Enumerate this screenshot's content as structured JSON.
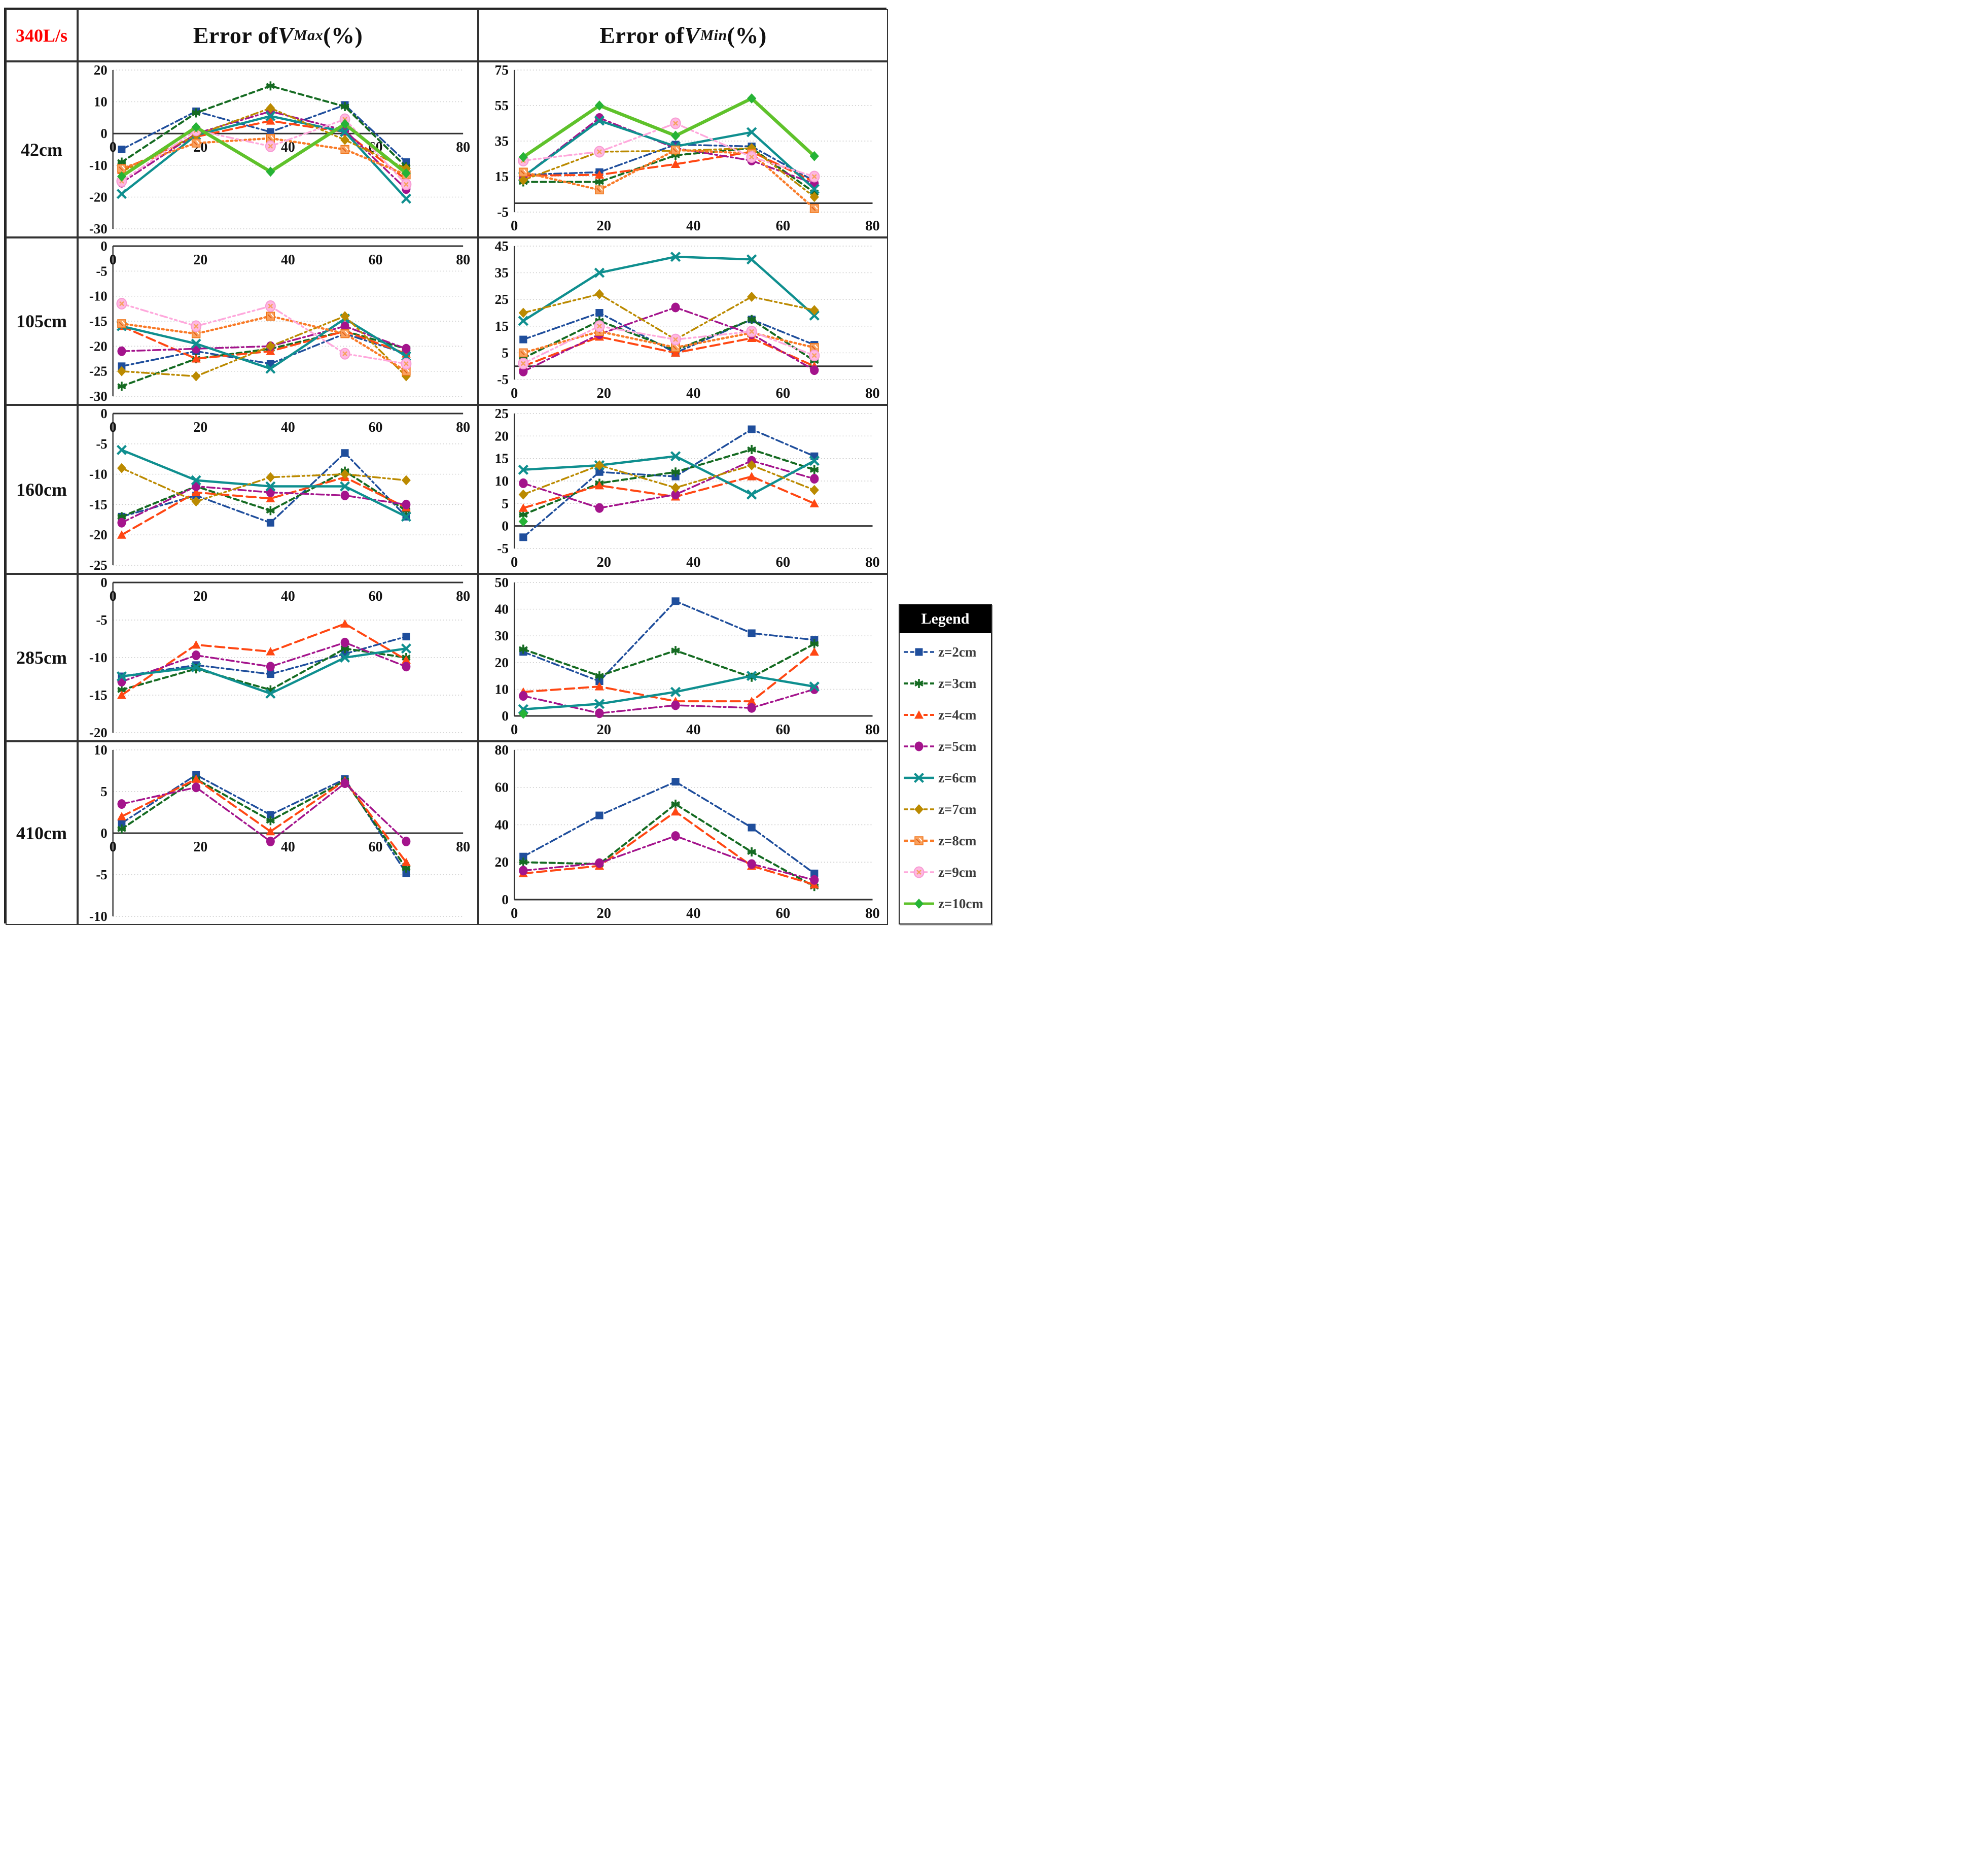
{
  "table": {
    "corner_label": "340L/s",
    "vmax_header": {
      "prefix": "Error of ",
      "symbol": "V",
      "subscript": "Max",
      "suffix": " (%)"
    },
    "vmin_header": {
      "prefix": "Error of ",
      "symbol": "V",
      "subscript": "Min",
      "suffix": " (%)"
    },
    "row_labels": [
      "42cm",
      "105cm",
      "160cm",
      "285cm",
      "410cm"
    ]
  },
  "legend": {
    "title": "Legend",
    "items": [
      {
        "id": "z2",
        "label": "z=2cm"
      },
      {
        "id": "z3",
        "label": "z=3cm"
      },
      {
        "id": "z4",
        "label": "z=4cm"
      },
      {
        "id": "z5",
        "label": "z=5cm"
      },
      {
        "id": "z6",
        "label": "z=6cm"
      },
      {
        "id": "z7",
        "label": "z=7cm"
      },
      {
        "id": "z8",
        "label": "z=8cm"
      },
      {
        "id": "z9",
        "label": "z=9cm"
      },
      {
        "id": "z10",
        "label": "z=10cm"
      }
    ]
  },
  "series_styles": {
    "z2": {
      "color": "#1F4E9C",
      "marker": "square",
      "dash": "14 6 4 6",
      "width": 3.5
    },
    "z3": {
      "color": "#156B22",
      "marker": "asterisk",
      "dash": "10 7",
      "width": 4
    },
    "z4": {
      "color": "#FF4713",
      "marker": "triangle",
      "dash": "18 9",
      "width": 4
    },
    "z5": {
      "color": "#A4148C",
      "marker": "circle",
      "dash": "15 6 4 6",
      "width": 3.5
    },
    "z6": {
      "color": "#0F8F8F",
      "marker": "xcross",
      "dash": "",
      "width": 4.5
    },
    "z7": {
      "color": "#BB8A00",
      "marker": "diamond",
      "dash": "14 6 4 6 4 6",
      "width": 3.5
    },
    "z8": {
      "color": "#F97B28",
      "marker": "patsquare",
      "dash": "3 6",
      "width": 4.5
    },
    "z9": {
      "color": "#FFA8DC",
      "marker": "pinkcircle",
      "dash": "14 6 4 6 4 6",
      "width": 3.5
    },
    "z10": {
      "color": "#5FC22B",
      "marker": "gdiamond",
      "dash": "",
      "width": 6.5,
      "marker_color": "#26B336"
    }
  },
  "chart_data": [
    {
      "id": "chart-42cm-vmax",
      "row": "42cm",
      "col": "vmax",
      "type": "line",
      "grid": true,
      "x": [
        2,
        19,
        36,
        53,
        67
      ],
      "xlim": [
        0,
        80
      ],
      "xticks": [
        0,
        20,
        40,
        60,
        80
      ],
      "ylim": [
        -30,
        20
      ],
      "yticks": [
        20,
        10,
        0,
        -10,
        -20,
        -30
      ],
      "xlabel_pos": "zero",
      "series": {
        "z2": [
          -5,
          7,
          0.5,
          9,
          -9
        ],
        "z3": [
          -9,
          6.5,
          15,
          8.5,
          -10.5
        ],
        "z4": [
          -11.5,
          -1,
          4,
          0.5,
          -14.5
        ],
        "z5": [
          -15.5,
          0,
          7,
          1,
          -17.5
        ],
        "z6": [
          -19,
          -0.5,
          5.5,
          0.5,
          -20.5
        ],
        "z7": [
          -12,
          -0.5,
          8,
          -2,
          -11
        ],
        "z8": [
          -11,
          -3,
          -1.5,
          -5,
          -13
        ],
        "z9": [
          -15,
          1,
          -4,
          4.5,
          -16
        ],
        "z10": [
          -13.5,
          2,
          -12,
          3,
          -12.5
        ]
      }
    },
    {
      "id": "chart-42cm-vmin",
      "row": "42cm",
      "col": "vmin",
      "type": "line",
      "grid": true,
      "x": [
        2,
        19,
        36,
        53,
        67
      ],
      "xlim": [
        0,
        80
      ],
      "xticks": [
        0,
        20,
        40,
        60,
        80
      ],
      "ylim": [
        -5,
        75
      ],
      "yticks": [
        75,
        55,
        35,
        15,
        -5
      ],
      "xlabel_pos": "bottom",
      "series": {
        "z2": [
          16,
          17.5,
          33,
          32,
          12.5
        ],
        "z3": [
          12,
          12,
          27,
          31,
          6
        ],
        "z4": [
          15.5,
          16,
          22,
          29,
          12
        ],
        "z5": [
          15,
          48,
          31,
          24,
          11
        ],
        "z6": [
          15,
          46.5,
          32,
          40,
          8
        ],
        "z7": [
          13,
          29,
          29.5,
          31,
          3.5
        ],
        "z8": [
          17.5,
          7.5,
          30,
          28,
          -3
        ],
        "z9": [
          24,
          29,
          45,
          26,
          15
        ],
        "z10": [
          26,
          55,
          38,
          59,
          26.5
        ]
      }
    },
    {
      "id": "chart-105cm-vmax",
      "row": "105cm",
      "col": "vmax",
      "type": "line",
      "grid": true,
      "x": [
        2,
        19,
        36,
        53,
        67
      ],
      "xlim": [
        0,
        80
      ],
      "xticks": [
        0,
        20,
        40,
        60,
        80
      ],
      "ylim": [
        -30,
        0
      ],
      "yticks": [
        0,
        -5,
        -10,
        -15,
        -20,
        -25,
        -30
      ],
      "xlabel_pos": "zero",
      "series": {
        "z2": [
          -24,
          -21,
          -23.5,
          -17.5,
          -21.5
        ],
        "z3": [
          -28,
          -22.5,
          -20.5,
          -17,
          -20.5
        ],
        "z4": [
          -16,
          -22.5,
          -21,
          -17,
          -21.5
        ],
        "z5": [
          -21,
          -20.5,
          -20,
          -16,
          -20.5
        ],
        "z6": [
          -16,
          -19.5,
          -24.5,
          -14.5,
          -22
        ],
        "z7": [
          -25,
          -26,
          -20,
          -14,
          -26
        ],
        "z8": [
          -15.5,
          -17.5,
          -14,
          -17.5,
          -25
        ],
        "z9": [
          -11.5,
          -16,
          -12,
          -21.5,
          -23.5
        ]
      }
    },
    {
      "id": "chart-105cm-vmin",
      "row": "105cm",
      "col": "vmin",
      "type": "line",
      "grid": true,
      "x": [
        2,
        19,
        36,
        53,
        67
      ],
      "xlim": [
        0,
        80
      ],
      "xticks": [
        0,
        20,
        40,
        60,
        80
      ],
      "ylim": [
        -5,
        45
      ],
      "yticks": [
        45,
        35,
        25,
        15,
        5,
        -5
      ],
      "xlabel_pos": "bottom",
      "series": {
        "z2": [
          10,
          20,
          5,
          17.5,
          8
        ],
        "z3": [
          3,
          17,
          6,
          17.5,
          2
        ],
        "z4": [
          0,
          11,
          5,
          10.5,
          0
        ],
        "z5": [
          -2,
          12,
          22,
          12,
          -1.5
        ],
        "z6": [
          17,
          35,
          41,
          40,
          19
        ],
        "z7": [
          20,
          27,
          10,
          26,
          21
        ],
        "z8": [
          5,
          13,
          7,
          12.5,
          7
        ],
        "z9": [
          1,
          15,
          10,
          13,
          4
        ]
      }
    },
    {
      "id": "chart-160cm-vmax",
      "row": "160cm",
      "col": "vmax",
      "type": "line",
      "grid": true,
      "x": [
        2,
        19,
        36,
        53,
        67
      ],
      "xlim": [
        0,
        80
      ],
      "xticks": [
        0,
        20,
        40,
        60,
        80
      ],
      "ylim": [
        -25,
        0
      ],
      "yticks": [
        0,
        -5,
        -10,
        -15,
        -20,
        -25
      ],
      "xlabel_pos": "zero",
      "series": {
        "z2": [
          -17,
          -13.5,
          -18,
          -6.5,
          -17
        ],
        "z3": [
          -17,
          -12,
          -16,
          -9.5,
          -16
        ],
        "z4": [
          -20,
          -13,
          -14,
          -10.5,
          -15.5
        ],
        "z5": [
          -18,
          -12,
          -13,
          -13.5,
          -15
        ],
        "z6": [
          -6,
          -11,
          -12,
          -12,
          -17
        ],
        "z7": [
          -9,
          -14.5,
          -10.5,
          -10,
          -11
        ]
      }
    },
    {
      "id": "chart-160cm-vmin",
      "row": "160cm",
      "col": "vmin",
      "type": "line",
      "grid": true,
      "x": [
        2,
        19,
        36,
        53,
        67
      ],
      "xlim": [
        0,
        80
      ],
      "xticks": [
        0,
        20,
        40,
        60,
        80
      ],
      "ylim": [
        -5,
        25
      ],
      "yticks": [
        25,
        20,
        15,
        10,
        5,
        0,
        -5
      ],
      "xlabel_pos": "bottom",
      "series": {
        "z2": [
          -2.5,
          12,
          11,
          21.5,
          15.5
        ],
        "z3": [
          2.5,
          9.5,
          12,
          17,
          12.5
        ],
        "z4": [
          4,
          9,
          6.5,
          11,
          5
        ],
        "z5": [
          9.5,
          4,
          7,
          14.5,
          10.5
        ],
        "z6": [
          12.5,
          13.5,
          15.5,
          7,
          14.5
        ],
        "z7": [
          7,
          13.5,
          8.5,
          13.5,
          8
        ],
        "z10": [
          1,
          null,
          null,
          null,
          null
        ]
      }
    },
    {
      "id": "chart-285cm-vmax",
      "row": "285cm",
      "col": "vmax",
      "type": "line",
      "grid": true,
      "x": [
        2,
        19,
        36,
        53,
        67
      ],
      "xlim": [
        0,
        80
      ],
      "xticks": [
        0,
        20,
        40,
        60,
        80
      ],
      "ylim": [
        -20,
        0
      ],
      "yticks": [
        0,
        -5,
        -10,
        -15,
        -20
      ],
      "xlabel_pos": "zero",
      "series": {
        "z2": [
          -12.5,
          -11,
          -12.2,
          -9.5,
          -7.2
        ],
        "z3": [
          -14.3,
          -11.5,
          -14.3,
          -8.8,
          -10
        ],
        "z4": [
          -15,
          -8.3,
          -9.2,
          -5.5,
          -10.3
        ],
        "z5": [
          -13.2,
          -9.7,
          -11.2,
          -8,
          -11.2
        ],
        "z6": [
          -12.5,
          -11.3,
          -14.8,
          -10,
          -8.8
        ]
      }
    },
    {
      "id": "chart-285cm-vmin",
      "row": "285cm",
      "col": "vmin",
      "type": "line",
      "grid": true,
      "x": [
        2,
        19,
        36,
        53,
        67
      ],
      "xlim": [
        0,
        80
      ],
      "xticks": [
        0,
        20,
        40,
        60,
        80
      ],
      "ylim": [
        0,
        50
      ],
      "yticks": [
        50,
        40,
        30,
        20,
        10,
        0
      ],
      "xlabel_pos": "bottom",
      "series": {
        "z2": [
          24,
          13,
          43,
          31,
          28.5
        ],
        "z3": [
          25,
          15,
          24.5,
          14.5,
          27
        ],
        "z4": [
          9,
          11,
          5.5,
          5.5,
          24
        ],
        "z5": [
          7.5,
          1,
          4,
          3,
          10
        ],
        "z6": [
          2.5,
          4.5,
          9,
          15,
          11
        ],
        "z10": [
          0.8,
          null,
          null,
          null,
          null
        ]
      }
    },
    {
      "id": "chart-410cm-vmax",
      "row": "410cm",
      "col": "vmax",
      "type": "line",
      "grid": true,
      "x": [
        2,
        19,
        36,
        53,
        67
      ],
      "xlim": [
        0,
        80
      ],
      "xticks": [
        0,
        20,
        40,
        60,
        80
      ],
      "ylim": [
        -10,
        10
      ],
      "yticks": [
        10,
        5,
        0,
        -5,
        -10
      ],
      "xlabel_pos": "zero",
      "series": {
        "z2": [
          1.2,
          7,
          2.2,
          6.5,
          -4.8
        ],
        "z3": [
          0.5,
          6.5,
          1.5,
          6.3,
          -4.2
        ],
        "z4": [
          2,
          6.5,
          0.2,
          6.3,
          -3.5
        ],
        "z5": [
          3.5,
          5.5,
          -1,
          6,
          -1
        ]
      }
    },
    {
      "id": "chart-410cm-vmin",
      "row": "410cm",
      "col": "vmin",
      "type": "line",
      "grid": true,
      "x": [
        2,
        19,
        36,
        53,
        67
      ],
      "xlim": [
        0,
        80
      ],
      "xticks": [
        0,
        20,
        40,
        60,
        80
      ],
      "ylim": [
        0,
        80
      ],
      "yticks": [
        80,
        60,
        40,
        20,
        0
      ],
      "xlabel_pos": "bottom",
      "series": {
        "z2": [
          23,
          45,
          63,
          38.5,
          14
        ],
        "z3": [
          20,
          19,
          51,
          25.5,
          7
        ],
        "z4": [
          14,
          18,
          47,
          18,
          8
        ],
        "z5": [
          15.5,
          19.5,
          34,
          19,
          10.5
        ]
      }
    }
  ]
}
